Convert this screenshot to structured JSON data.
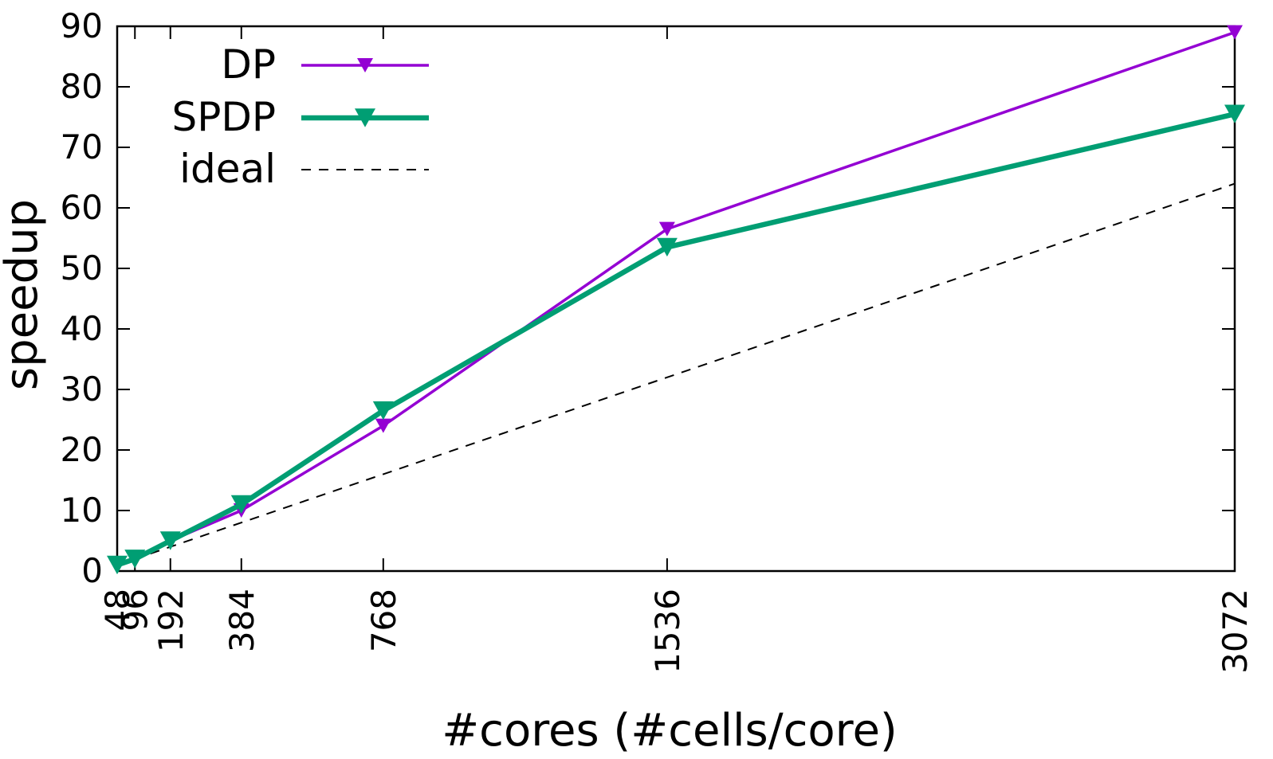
{
  "chart_data": {
    "type": "line",
    "title": "",
    "xlabel": "#cores (#cells/core)",
    "ylabel": "speedup",
    "x": [
      48,
      96,
      192,
      384,
      768,
      1536,
      3072
    ],
    "xticks": [
      "48",
      "96",
      "192",
      "384",
      "768",
      "1536",
      "3072"
    ],
    "yticks": [
      "0",
      "10",
      "20",
      "30",
      "40",
      "50",
      "60",
      "70",
      "80",
      "90"
    ],
    "xlim": [
      48,
      3072
    ],
    "ylim": [
      0,
      90
    ],
    "grid": false,
    "legend_position": "top-left",
    "series": [
      {
        "name": "DP",
        "color": "#9400d3",
        "style": "solid",
        "marker": "triangle-down",
        "values": [
          1,
          2,
          5,
          10,
          24,
          56.5,
          89
        ]
      },
      {
        "name": "SPDP",
        "color": "#009e73",
        "style": "solid-thick",
        "marker": "triangle-down",
        "values": [
          1,
          2,
          5,
          11,
          26.5,
          53.5,
          75.5
        ]
      },
      {
        "name": "ideal",
        "color": "#000000",
        "style": "dashed",
        "marker": "none",
        "values": [
          1,
          2,
          4,
          8,
          16,
          32,
          64
        ]
      }
    ]
  }
}
